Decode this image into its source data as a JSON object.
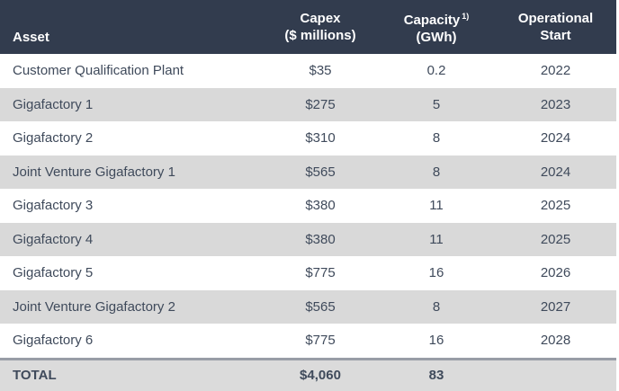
{
  "table": {
    "columns": {
      "asset": "Asset",
      "capex_line1": "Capex",
      "capex_line2": "($ millions)",
      "capacity_line1": "Capacity",
      "capacity_footnote": "1)",
      "capacity_line2": "(GWh)",
      "operational_line1": "Operational",
      "operational_line2": "Start"
    },
    "rows": [
      {
        "asset": "Customer Qualification Plant",
        "capex": "$35",
        "capacity": "0.2",
        "start": "2022"
      },
      {
        "asset": "Gigafactory 1",
        "capex": "$275",
        "capacity": "5",
        "start": "2023"
      },
      {
        "asset": "Gigafactory 2",
        "capex": "$310",
        "capacity": "8",
        "start": "2024"
      },
      {
        "asset": "Joint Venture Gigafactory 1",
        "capex": "$565",
        "capacity": "8",
        "start": "2024"
      },
      {
        "asset": "Gigafactory 3",
        "capex": "$380",
        "capacity": "11",
        "start": "2025"
      },
      {
        "asset": "Gigafactory 4",
        "capex": "$380",
        "capacity": "11",
        "start": "2025"
      },
      {
        "asset": "Gigafactory 5",
        "capex": "$775",
        "capacity": "16",
        "start": "2026"
      },
      {
        "asset": "Joint Venture Gigafactory 2",
        "capex": "$565",
        "capacity": "8",
        "start": "2027"
      },
      {
        "asset": "Gigafactory 6",
        "capex": "$775",
        "capacity": "16",
        "start": "2028"
      }
    ],
    "total": {
      "label": "TOTAL",
      "capex": "$4,060",
      "capacity": "83",
      "start": ""
    }
  },
  "colors": {
    "header_bg": "#323c4e",
    "header_text": "#ffffff",
    "row_alt_bg": "#d9d9d9",
    "total_bg": "#dbdbdb",
    "total_border": "#989da6",
    "body_text": "#3f4a5b"
  }
}
